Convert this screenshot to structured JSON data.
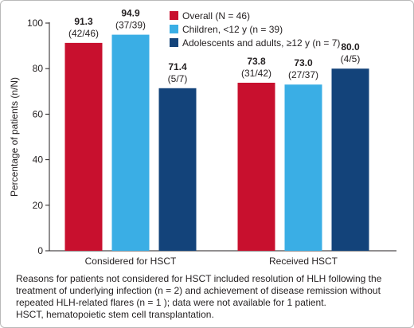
{
  "colors": {
    "overall": "#c8102e",
    "children": "#3aaee5",
    "adolescents": "#13437a",
    "axis": "#231f20"
  },
  "chart_data": {
    "type": "bar",
    "categories": [
      "Considered for HSCT",
      "Received HSCT"
    ],
    "ylabel": "Percentage of patients (n/N)",
    "xlabel": "",
    "ylim": [
      0,
      100
    ],
    "yticks": [
      0,
      20,
      40,
      60,
      80,
      100
    ],
    "grid": false,
    "legend_position": "top-right",
    "series": [
      {
        "name": "Overall (N = 46)",
        "color": "#c8102e",
        "values": [
          91.3,
          73.8
        ],
        "value_labels": [
          "91.3",
          "73.8"
        ],
        "count_labels": [
          "(42/46)",
          "(31/42)"
        ]
      },
      {
        "name": "Children, <12 y (n = 39)",
        "color": "#3aaee5",
        "values": [
          94.9,
          73.0
        ],
        "value_labels": [
          "94.9",
          "73.0"
        ],
        "count_labels": [
          "(37/39)",
          "(27/37)"
        ]
      },
      {
        "name": "Adolescents and adults, ≥12 y (n = 7)",
        "color": "#13437a",
        "values": [
          71.4,
          80.0
        ],
        "value_labels": [
          "71.4",
          "80.0"
        ],
        "count_labels": [
          "(5/7)",
          "(4/5)"
        ]
      }
    ]
  },
  "footnote": {
    "line1": "Reasons for patients not considered for HSCT included resolution of HLH following the treatment of underlying infection (n = 2) and achievement of disease remission without repeated HLH-related flares (n = 1 ); data were not available for 1 patient.",
    "line2": "HSCT, hematopoietic stem cell transplantation."
  }
}
